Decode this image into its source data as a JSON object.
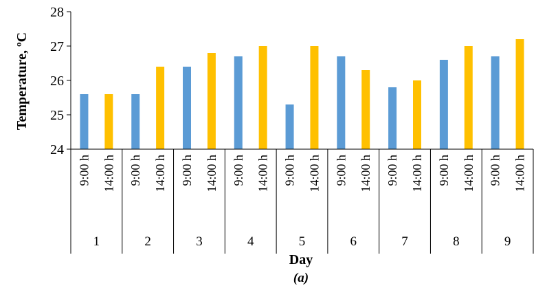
{
  "chart_data": {
    "type": "bar",
    "ylabel": "Temperature, ºC",
    "xlabel": "Day",
    "caption": "(a)",
    "ylim": [
      24,
      28
    ],
    "yticks": [
      "24",
      "25",
      "26",
      "27",
      "28"
    ],
    "groups": [
      "1",
      "2",
      "3",
      "4",
      "5",
      "6",
      "7",
      "8",
      "9"
    ],
    "times": [
      "9:00 h",
      "14:00 h"
    ],
    "series_colors": [
      "#5B9BD5",
      "#FFC000"
    ],
    "values": [
      [
        25.6,
        25.6
      ],
      [
        25.6,
        26.4
      ],
      [
        26.4,
        26.8
      ],
      [
        26.7,
        27.0
      ],
      [
        25.3,
        27.0
      ],
      [
        26.7,
        26.3
      ],
      [
        25.8,
        26.0
      ],
      [
        26.6,
        27.0
      ],
      [
        26.7,
        27.2
      ]
    ],
    "grid": false,
    "legend": "none"
  }
}
